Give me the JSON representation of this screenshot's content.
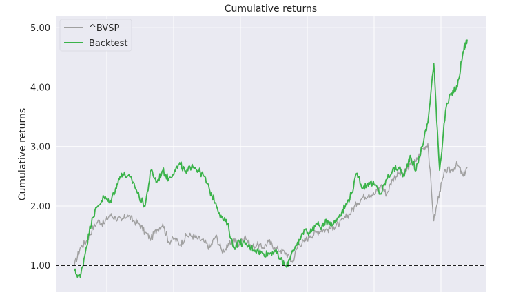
{
  "chart_data": {
    "type": "line",
    "title": "Cumulative returns",
    "xlabel": "",
    "ylabel": "Cumulative returns",
    "x_tick_labels": [],
    "yticks": [
      "1.00",
      "2.00",
      "3.00",
      "4.00",
      "5.00"
    ],
    "ytick_values": [
      1.0,
      2.0,
      3.0,
      4.0,
      5.0
    ],
    "ylim": [
      0.55,
      5.2
    ],
    "xlim": [
      0,
      1
    ],
    "grid": true,
    "legend_position": "upper-left",
    "reference_line": {
      "y": 1.0,
      "style": "dashed",
      "color": "#000000"
    },
    "colors": {
      "plot_background": "#eaeaf2",
      "grid": "#ffffff",
      "bvsp": "#a0a0a0",
      "backtest": "#3bb34a"
    },
    "series": [
      {
        "name": "^BVSP",
        "color": "#a0a0a0",
        "x": [
          0.0,
          0.015,
          0.03,
          0.045,
          0.06,
          0.075,
          0.09,
          0.105,
          0.12,
          0.135,
          0.15,
          0.165,
          0.18,
          0.195,
          0.21,
          0.225,
          0.24,
          0.255,
          0.27,
          0.285,
          0.3,
          0.315,
          0.33,
          0.345,
          0.36,
          0.375,
          0.39,
          0.405,
          0.42,
          0.435,
          0.45,
          0.465,
          0.48,
          0.495,
          0.51,
          0.525,
          0.54,
          0.555,
          0.57,
          0.585,
          0.6,
          0.615,
          0.63,
          0.645,
          0.66,
          0.675,
          0.69,
          0.705,
          0.72,
          0.735,
          0.75,
          0.765,
          0.78,
          0.795,
          0.81,
          0.825,
          0.84,
          0.855,
          0.87,
          0.885,
          0.9,
          0.915,
          0.93,
          0.945,
          0.96,
          0.975,
          0.99,
          1.0
        ],
        "y": [
          1.0,
          1.3,
          1.4,
          1.6,
          1.75,
          1.7,
          1.85,
          1.8,
          1.75,
          1.85,
          1.75,
          1.7,
          1.55,
          1.45,
          1.6,
          1.7,
          1.4,
          1.45,
          1.35,
          1.5,
          1.5,
          1.45,
          1.4,
          1.3,
          1.5,
          1.25,
          1.3,
          1.45,
          1.35,
          1.5,
          1.3,
          1.35,
          1.3,
          1.4,
          1.3,
          1.25,
          1.2,
          1.05,
          1.35,
          1.4,
          1.5,
          1.55,
          1.6,
          1.6,
          1.65,
          1.7,
          1.8,
          1.9,
          2.05,
          2.15,
          2.2,
          2.2,
          2.35,
          2.2,
          2.45,
          2.55,
          2.55,
          2.7,
          2.75,
          2.95,
          3.05,
          1.75,
          2.25,
          2.6,
          2.6,
          2.7,
          2.5,
          2.65
        ]
      },
      {
        "name": "Backtest",
        "color": "#3bb34a",
        "x": [
          0.0,
          0.015,
          0.03,
          0.045,
          0.06,
          0.075,
          0.09,
          0.105,
          0.12,
          0.135,
          0.15,
          0.165,
          0.18,
          0.195,
          0.21,
          0.225,
          0.24,
          0.255,
          0.27,
          0.285,
          0.3,
          0.315,
          0.33,
          0.345,
          0.36,
          0.375,
          0.39,
          0.405,
          0.42,
          0.435,
          0.45,
          0.465,
          0.48,
          0.495,
          0.51,
          0.525,
          0.54,
          0.555,
          0.57,
          0.585,
          0.6,
          0.615,
          0.63,
          0.645,
          0.66,
          0.675,
          0.69,
          0.705,
          0.72,
          0.735,
          0.75,
          0.765,
          0.78,
          0.795,
          0.81,
          0.825,
          0.84,
          0.855,
          0.87,
          0.885,
          0.9,
          0.915,
          0.93,
          0.945,
          0.96,
          0.975,
          0.99,
          1.0
        ],
        "y": [
          0.9,
          0.8,
          1.3,
          1.8,
          2.0,
          2.15,
          2.05,
          2.3,
          2.55,
          2.5,
          2.4,
          2.15,
          2.0,
          2.6,
          2.4,
          2.6,
          2.45,
          2.6,
          2.7,
          2.55,
          2.7,
          2.6,
          2.5,
          2.25,
          2.05,
          1.8,
          1.7,
          1.3,
          1.4,
          1.35,
          1.3,
          1.25,
          1.2,
          1.2,
          1.25,
          1.1,
          0.97,
          1.25,
          1.35,
          1.6,
          1.55,
          1.7,
          1.65,
          1.75,
          1.7,
          1.85,
          2.0,
          2.2,
          2.55,
          2.3,
          2.4,
          2.35,
          2.2,
          2.45,
          2.6,
          2.65,
          2.5,
          2.85,
          2.6,
          3.0,
          3.4,
          4.4,
          2.6,
          3.6,
          3.9,
          4.0,
          4.6,
          4.8
        ]
      }
    ]
  }
}
